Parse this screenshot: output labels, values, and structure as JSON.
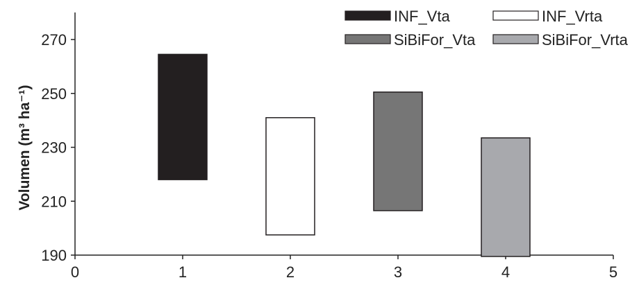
{
  "chart_data": {
    "type": "floating-bar",
    "x": [
      1,
      2,
      3,
      4
    ],
    "series": [
      {
        "name": "INF_Vta",
        "x": 1,
        "low": 218,
        "high": 264.5,
        "color": "#231f20"
      },
      {
        "name": "INF_Vrta",
        "x": 2,
        "low": 197.5,
        "high": 241,
        "color": "#ffffff"
      },
      {
        "name": "SiBiFor_Vta",
        "x": 3,
        "low": 206.5,
        "high": 250.5,
        "color": "#767676"
      },
      {
        "name": "SiBiFor_Vrta",
        "x": 4,
        "low": 189.5,
        "high": 233.5,
        "color": "#a8a9ad"
      }
    ],
    "xlim": [
      0,
      5
    ],
    "ylim": [
      190,
      280
    ],
    "xticks": [
      "0",
      "1",
      "2",
      "3",
      "4",
      "5"
    ],
    "yticks": [
      "190",
      "210",
      "230",
      "250",
      "270"
    ],
    "ylabel": "Volumen (m³ ha⁻¹)",
    "legend_position": "top-right",
    "grid": false
  }
}
